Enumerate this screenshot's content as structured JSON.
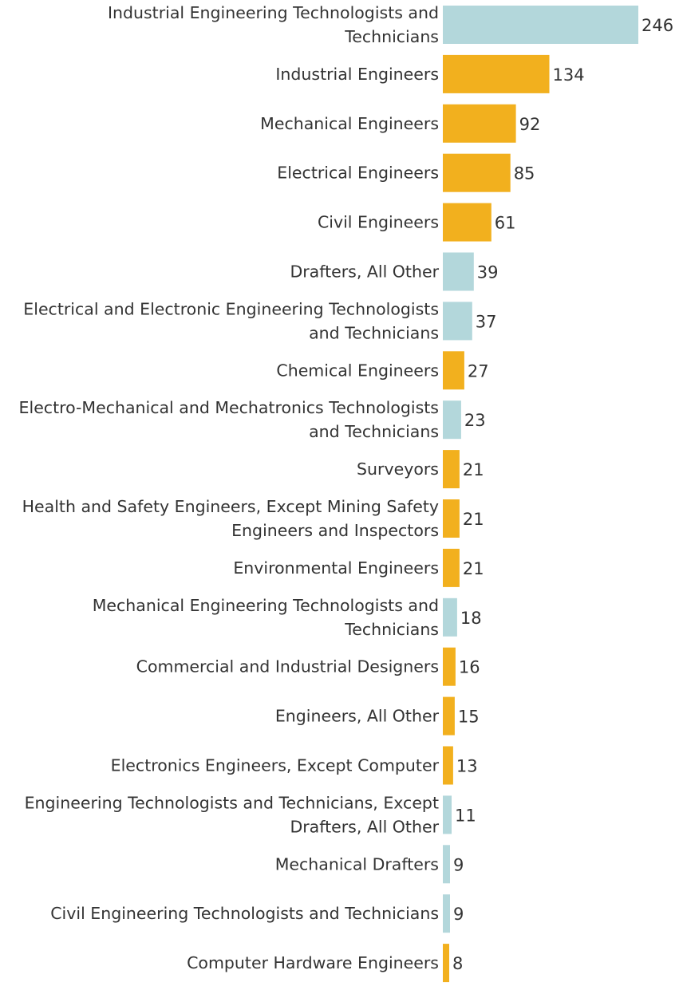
{
  "chart_data": {
    "type": "bar",
    "orientation": "horizontal",
    "title": "",
    "xlabel": "",
    "ylabel": "",
    "colors": {
      "engineers": "#f2b01e",
      "technologists_drafters": "#b3d7db"
    },
    "categories": [
      "Industrial Engineering Technologists and Technicians",
      "Industrial Engineers",
      "Mechanical Engineers",
      "Electrical Engineers",
      "Civil Engineers",
      "Drafters, All Other",
      "Electrical and Electronic Engineering Technologists and Technicians",
      "Chemical Engineers",
      "Electro-Mechanical and Mechatronics Technologists and Technicians",
      "Surveyors",
      "Health and Safety Engineers, Except Mining Safety Engineers and Inspectors",
      "Environmental Engineers",
      "Mechanical Engineering Technologists and Technicians",
      "Commercial and Industrial Designers",
      "Engineers, All Other",
      "Electronics Engineers, Except Computer",
      "Engineering Technologists and Technicians, Except Drafters, All Other",
      "Mechanical Drafters",
      "Civil Engineering Technologists and Technicians",
      "Computer Hardware Engineers"
    ],
    "label_lines": [
      [
        "Industrial Engineering Technologists and",
        "Technicians"
      ],
      [
        "Industrial Engineers"
      ],
      [
        "Mechanical Engineers"
      ],
      [
        "Electrical Engineers"
      ],
      [
        "Civil Engineers"
      ],
      [
        "Drafters, All Other"
      ],
      [
        "Electrical and Electronic Engineering Technologists",
        "and Technicians"
      ],
      [
        "Chemical Engineers"
      ],
      [
        "Electro-Mechanical and Mechatronics Technologists",
        "and Technicians"
      ],
      [
        "Surveyors"
      ],
      [
        "Health and Safety Engineers, Except Mining Safety",
        "Engineers and Inspectors"
      ],
      [
        "Environmental Engineers"
      ],
      [
        "Mechanical Engineering Technologists and",
        "Technicians"
      ],
      [
        "Commercial and Industrial Designers"
      ],
      [
        "Engineers, All Other"
      ],
      [
        "Electronics Engineers, Except Computer"
      ],
      [
        "Engineering Technologists and Technicians, Except",
        "Drafters, All Other"
      ],
      [
        "Mechanical Drafters"
      ],
      [
        "Civil Engineering Technologists and Technicians"
      ],
      [
        "Computer Hardware Engineers"
      ]
    ],
    "values": [
      246,
      134,
      92,
      85,
      61,
      39,
      37,
      27,
      23,
      21,
      21,
      21,
      18,
      16,
      15,
      13,
      11,
      9,
      9,
      8
    ],
    "groups": [
      "technologists_drafters",
      "engineers",
      "engineers",
      "engineers",
      "engineers",
      "technologists_drafters",
      "technologists_drafters",
      "engineers",
      "technologists_drafters",
      "engineers",
      "engineers",
      "engineers",
      "technologists_drafters",
      "engineers",
      "engineers",
      "engineers",
      "technologists_drafters",
      "technologists_drafters",
      "technologists_drafters",
      "engineers"
    ],
    "xlim": [
      0,
      246
    ],
    "grid": false,
    "legend": "none"
  }
}
